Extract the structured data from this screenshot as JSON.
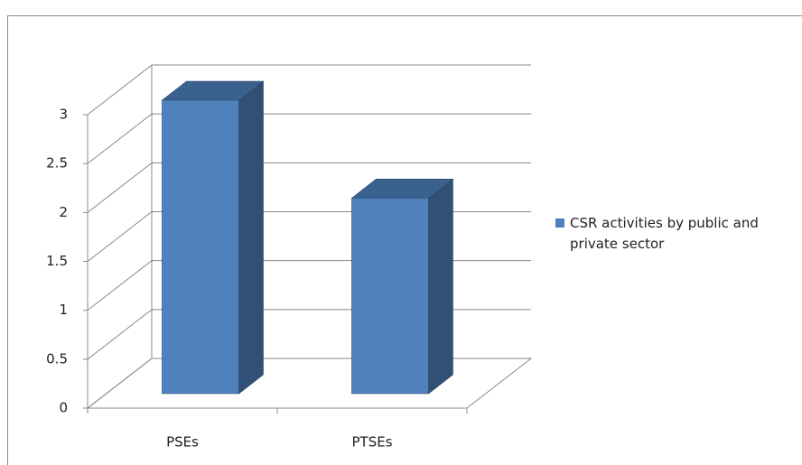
{
  "chart_data": {
    "type": "bar3d",
    "categories": [
      "PSEs",
      "PTSEs"
    ],
    "series": [
      {
        "name": "CSR activities by public and private sector",
        "color": "#4f81bd",
        "values": [
          3,
          2
        ]
      }
    ],
    "ylim": [
      0,
      3
    ],
    "yticks": [
      0,
      0.5,
      1,
      1.5,
      2,
      2.5,
      3
    ],
    "grid": true,
    "legend": "right"
  }
}
